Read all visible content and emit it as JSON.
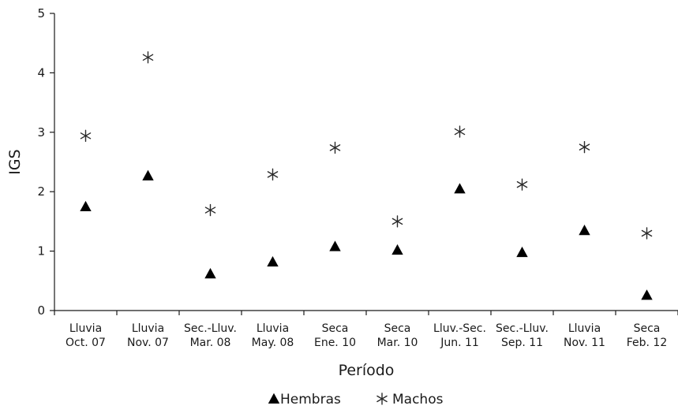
{
  "chart_data": {
    "type": "scatter",
    "title": "",
    "xlabel": "Período",
    "ylabel": "IGS",
    "ylim": [
      0,
      5
    ],
    "yticks": [
      "0",
      "1",
      "2",
      "3",
      "4",
      "5"
    ],
    "grid": false,
    "legend_position": "bottom-center",
    "categories": [
      [
        "Lluvia",
        "Oct. 07"
      ],
      [
        "Lluvia",
        "Nov. 07"
      ],
      [
        "Sec.-Lluv.",
        "Mar. 08"
      ],
      [
        "Lluvia",
        "May. 08"
      ],
      [
        "Seca",
        "Ene. 10"
      ],
      [
        "Seca",
        "Mar. 10"
      ],
      [
        "Lluv.-Sec.",
        "Jun. 11"
      ],
      [
        "Sec.-Lluv.",
        "Sep. 11"
      ],
      [
        "Lluvia",
        "Nov. 11"
      ],
      [
        "Seca",
        "Feb. 12"
      ]
    ],
    "series": [
      {
        "name": "Hembras",
        "marker": "triangle",
        "color": "#000000",
        "values": [
          1.75,
          2.27,
          0.62,
          0.82,
          1.08,
          1.02,
          2.05,
          0.98,
          1.35,
          0.26
        ]
      },
      {
        "name": "Machos",
        "marker": "asterisk",
        "color": "#2a2a2a",
        "values": [
          2.94,
          4.26,
          1.69,
          2.29,
          2.74,
          1.5,
          3.01,
          2.12,
          2.75,
          1.3
        ]
      }
    ]
  }
}
